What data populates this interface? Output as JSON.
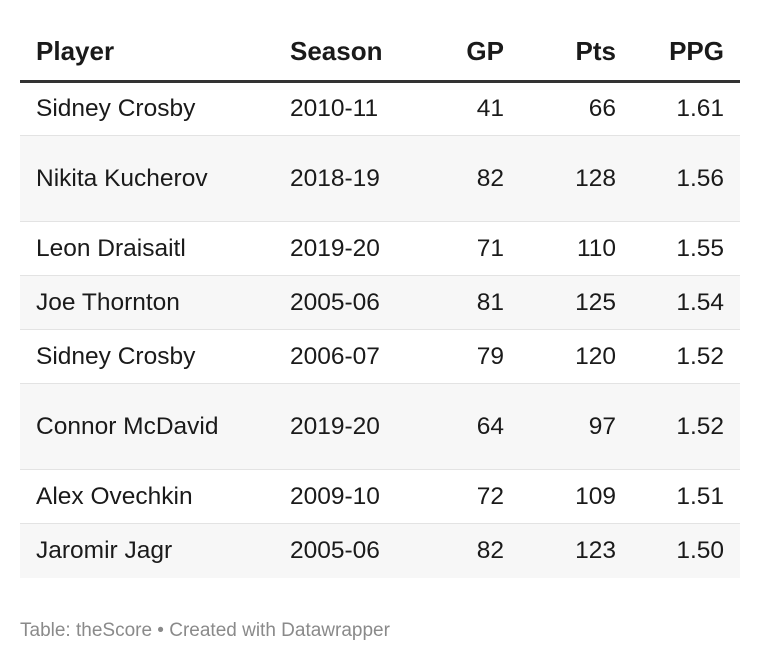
{
  "chart_data": {
    "type": "table",
    "columns": [
      "Player",
      "Season",
      "GP",
      "Pts",
      "PPG"
    ],
    "rows": [
      {
        "player": "Sidney Crosby",
        "season": "2010-11",
        "gp": "41",
        "pts": "66",
        "ppg": "1.61"
      },
      {
        "player": "Nikita Kucherov",
        "season": "2018-19",
        "gp": "82",
        "pts": "128",
        "ppg": "1.56"
      },
      {
        "player": "Leon Draisaitl",
        "season": "2019-20",
        "gp": "71",
        "pts": "110",
        "ppg": "1.55"
      },
      {
        "player": "Joe Thornton",
        "season": "2005-06",
        "gp": "81",
        "pts": "125",
        "ppg": "1.54"
      },
      {
        "player": "Sidney Crosby",
        "season": "2006-07",
        "gp": "79",
        "pts": "120",
        "ppg": "1.52"
      },
      {
        "player": "Connor McDavid",
        "season": "2019-20",
        "gp": "64",
        "pts": "97",
        "ppg": "1.52"
      },
      {
        "player": "Alex Ovechkin",
        "season": "2009-10",
        "gp": "72",
        "pts": "109",
        "ppg": "1.51"
      },
      {
        "player": "Jaromir Jagr",
        "season": "2005-06",
        "gp": "82",
        "pts": "123",
        "ppg": "1.50"
      }
    ]
  },
  "footer": {
    "source": "Table: theScore • Created with Datawrapper"
  },
  "colors": {
    "text": "#1a1a1a",
    "stripe": "#f7f7f7",
    "header_rule": "#333333",
    "row_rule": "#e3e3e3",
    "footer_text": "#8a8a8a"
  }
}
